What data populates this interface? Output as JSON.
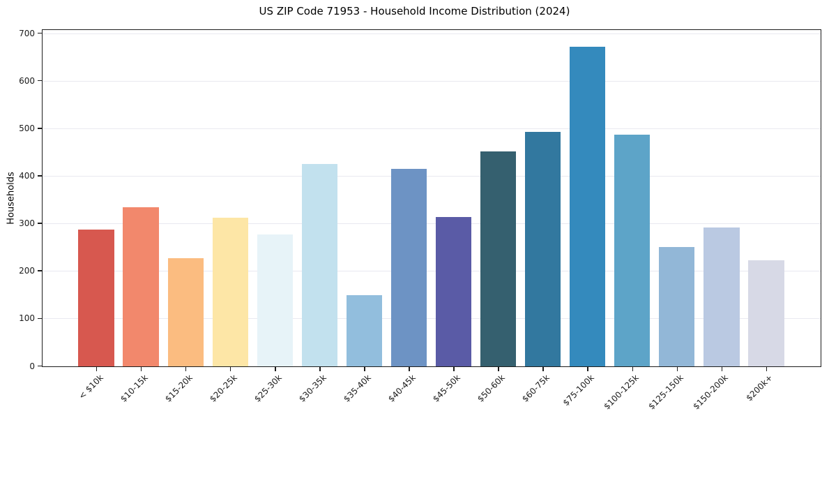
{
  "chart_data": {
    "type": "bar",
    "title": "US ZIP Code 71953 - Household Income Distribution (2024)",
    "xlabel": "",
    "ylabel": "Households",
    "ylim": [
      0,
      700
    ],
    "yticks": [
      0,
      100,
      200,
      300,
      400,
      500,
      600,
      700
    ],
    "grid": true,
    "legend_position": "none",
    "xtick_rotation_deg": 45,
    "categories": [
      "< $10k",
      "$10-15k",
      "$15-20k",
      "$20-25k",
      "$25-30k",
      "$30-35k",
      "$35-40k",
      "$40-45k",
      "$45-50k",
      "$50-60k",
      "$60-75k",
      "$75-100k",
      "$100-125k",
      "$125-150k",
      "$150-200k",
      "$200k+"
    ],
    "values": [
      288,
      335,
      227,
      312,
      277,
      425,
      150,
      415,
      314,
      452,
      493,
      672,
      487,
      251,
      292,
      223
    ],
    "bar_colors": [
      "#d7584f",
      "#f2886c",
      "#fbbc80",
      "#fde6a6",
      "#e7f3f8",
      "#c2e1ee",
      "#92bedd",
      "#6d93c4",
      "#5a5ba6",
      "#35606f",
      "#32789f",
      "#348abd",
      "#5da4c8",
      "#92b7d7",
      "#bac9e2",
      "#d7d9e6"
    ],
    "colors": {
      "spine": "#1c1c1c",
      "grid": "#e9e9f0",
      "background": "#ffffff",
      "text": "#1a1a1a"
    }
  }
}
